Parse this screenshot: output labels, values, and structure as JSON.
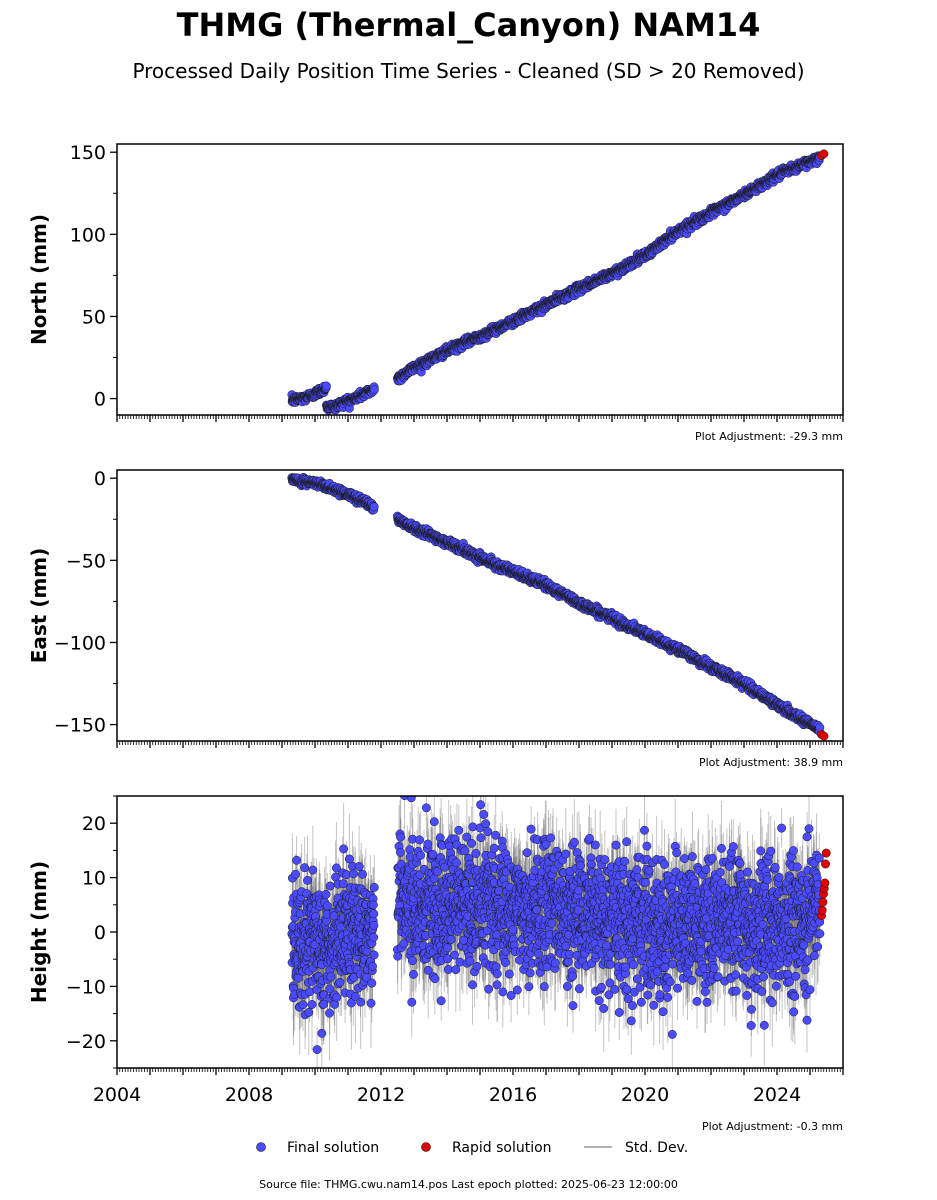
{
  "title": "THMG (Thermal_Canyon) NAM14",
  "subtitle": "Processed Daily Position Time Series - Cleaned (SD > 20 Removed)",
  "source_text": "Source file: THMG.cwu.nam14.pos  Last epoch plotted: 2025-06-23 12:00:00",
  "colors": {
    "final": "#4a4aff",
    "rapid": "#e00000",
    "stddev": "#b0b0b0",
    "edge": "#1a1a1a"
  },
  "legend": [
    {
      "label": "Final solution",
      "marker": "dot",
      "color": "#4a4aff"
    },
    {
      "label": "Rapid solution",
      "marker": "dot",
      "color": "#e00000"
    },
    {
      "label": "Std. Dev.",
      "marker": "line",
      "color": "#b0b0b0"
    }
  ],
  "chart_data": [
    {
      "type": "scatter",
      "ylabel": "North (mm)",
      "xlim": [
        2004.0,
        2026.0
      ],
      "ylim": [
        -10,
        155
      ],
      "yticks": [
        0,
        50,
        100,
        150
      ],
      "ytick_labels": [
        "0",
        "50",
        "100",
        "150"
      ],
      "x_minor_ticks_per_year": 12,
      "show_x_tick_labels": false,
      "adjustment": "Plot Adjustment: -29.3 mm",
      "stddev_typical": 1.5,
      "series": [
        {
          "name": "Final solution",
          "segments": [
            {
              "x": [
                2009.3,
                2009.6,
                2009.9,
                2010.2,
                2010.35
              ],
              "y": [
                -1,
                0,
                2,
                5,
                7
              ]
            },
            {
              "x": [
                2010.35,
                2010.6,
                2010.9,
                2011.2,
                2011.5,
                2011.8
              ],
              "y": [
                -5,
                -5,
                -2,
                0,
                3,
                6
              ]
            },
            {
              "x": [
                2012.5,
                2013.0,
                2014.0,
                2015.0,
                2016.0,
                2017.0,
                2018.0,
                2019.0,
                2020.0,
                2021.0,
                2022.0,
                2023.0,
                2024.0,
                2025.3
              ],
              "y": [
                12,
                19,
                29,
                38,
                47,
                57,
                67,
                76,
                87,
                102,
                113,
                124,
                136,
                147
              ]
            }
          ]
        },
        {
          "name": "Rapid solution",
          "x": [
            2025.35,
            2025.42
          ],
          "y": [
            148,
            149
          ]
        }
      ]
    },
    {
      "type": "scatter",
      "ylabel": "East (mm)",
      "xlim": [
        2004.0,
        2026.0
      ],
      "ylim": [
        -160,
        5
      ],
      "yticks": [
        0,
        -50,
        -100,
        -150
      ],
      "ytick_labels": [
        "0",
        "−50",
        "−100",
        "−150"
      ],
      "x_minor_ticks_per_year": 12,
      "show_x_tick_labels": false,
      "adjustment": "Plot Adjustment: 38.9 mm",
      "stddev_typical": 1.5,
      "series": [
        {
          "name": "Final solution",
          "segments": [
            {
              "x": [
                2009.3,
                2010.0,
                2010.5,
                2011.0,
                2011.5,
                2011.8
              ],
              "y": [
                -1,
                -3,
                -6,
                -10,
                -14,
                -18
              ]
            },
            {
              "x": [
                2012.5,
                2013.0,
                2014.0,
                2015.0,
                2016.0,
                2017.0,
                2018.0,
                2019.0,
                2020.0,
                2021.0,
                2022.0,
                2023.0,
                2024.0,
                2025.3
              ],
              "y": [
                -25,
                -30,
                -39,
                -48,
                -57,
                -65,
                -76,
                -85,
                -95,
                -104,
                -115,
                -125,
                -138,
                -153
              ]
            }
          ]
        },
        {
          "name": "Rapid solution",
          "x": [
            2025.35,
            2025.42
          ],
          "y": [
            -156,
            -157
          ]
        }
      ]
    },
    {
      "type": "scatter",
      "ylabel": "Height (mm)",
      "xlim": [
        2004.0,
        2026.0
      ],
      "ylim": [
        -25,
        25
      ],
      "yticks": [
        20,
        10,
        0,
        -10,
        -20
      ],
      "ytick_labels": [
        "20",
        "10",
        "0",
        "−10",
        "−20"
      ],
      "xticks": [
        2004,
        2008,
        2012,
        2016,
        2020,
        2024
      ],
      "xtick_labels": [
        "2004",
        "2008",
        "2012",
        "2016",
        "2020",
        "2024"
      ],
      "x_minor_ticks_per_year": 12,
      "show_x_tick_labels": true,
      "adjustment": "Plot Adjustment: -0.3 mm",
      "stddev_typical": 6,
      "series": [
        {
          "name": "Final solution",
          "scatter_sd": 6,
          "segments": [
            {
              "x": [
                2009.3,
                2010.0,
                2010.6,
                2011.2,
                2011.8
              ],
              "y": [
                -2,
                -3,
                -1,
                0,
                0
              ]
            },
            {
              "x": [
                2012.5,
                2013.5,
                2014.5,
                2015.5,
                2016.5,
                2017.5,
                2018.5,
                2019.5,
                2020.5,
                2021.5,
                2022.5,
                2023.5,
                2024.5,
                2025.3
              ],
              "y": [
                6,
                4,
                5,
                4,
                5,
                4,
                3,
                2,
                1,
                1,
                2,
                1,
                2,
                5
              ]
            }
          ]
        },
        {
          "name": "Rapid solution",
          "x": [
            2025.35,
            2025.37,
            2025.39,
            2025.41,
            2025.43,
            2025.45,
            2025.47,
            2025.49
          ],
          "y": [
            3,
            4,
            5.5,
            7,
            8,
            9,
            12.5,
            14.5
          ]
        }
      ]
    }
  ]
}
